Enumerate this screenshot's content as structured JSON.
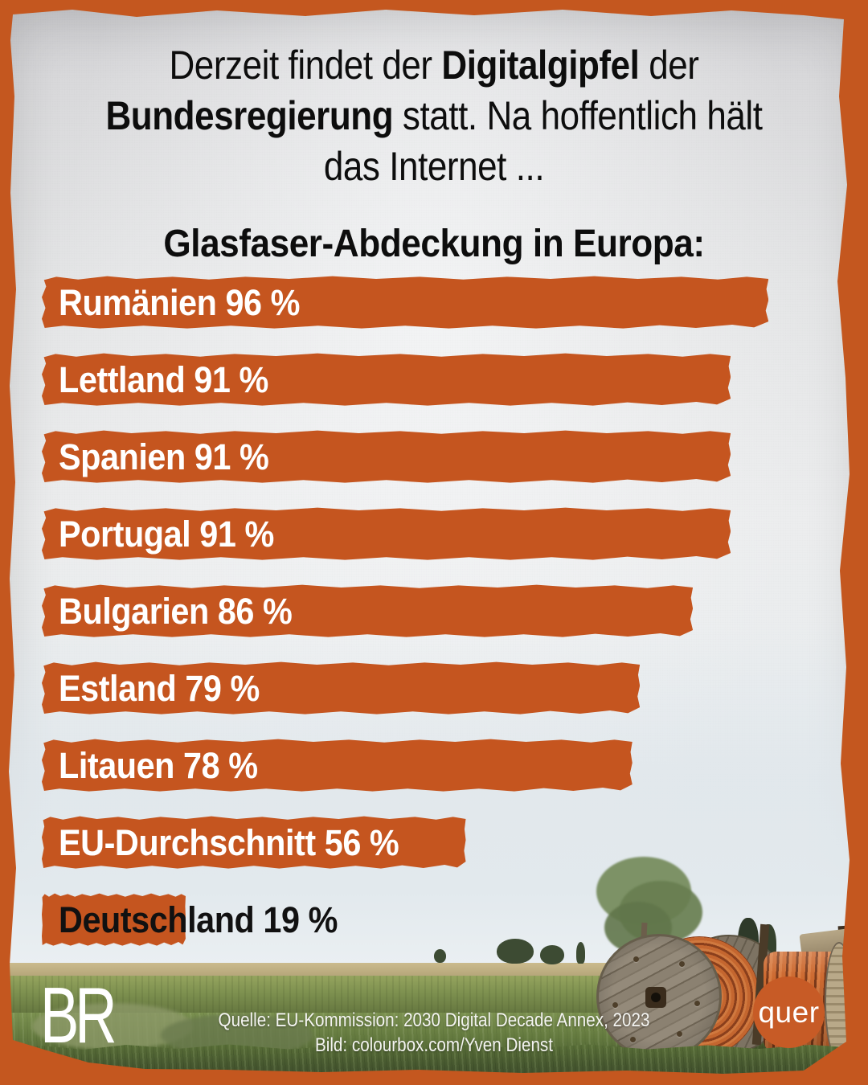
{
  "header": {
    "line1_normal1": "Derzeit findet der ",
    "line1_bold": "Digitalgipfel",
    "line1_normal2": " der",
    "line2_bold": "Bundesregierung",
    "line2_normal": " statt. Na hoffentlich hält",
    "line3": "das Internet ..."
  },
  "chart_data": {
    "type": "bar",
    "orientation": "horizontal",
    "title": "Glasfaser-Abdeckung in Europa:",
    "categories": [
      "Rumänien",
      "Lettland",
      "Spanien",
      "Portugal",
      "Bulgarien",
      "Estland",
      "Litauen",
      "EU-Durchschnitt",
      "Deutschland"
    ],
    "values": [
      96,
      91,
      91,
      91,
      86,
      79,
      78,
      56,
      19
    ],
    "unit": "%",
    "xlim": [
      0,
      100
    ],
    "grid": false,
    "legend": false,
    "bar_color": "#c5551f",
    "label_template": "{category} {value} %",
    "label_color": "#ffffff",
    "highlight_category": "Deutschland",
    "highlight_label_color": "#111111"
  },
  "footer": {
    "source_line1": "Quelle: EU-Kommission: 2030 Digital Decade Annex, 2023",
    "source_line2": "Bild: colourbox.com/Yven Dienst",
    "br_logo_text": "BR",
    "quer_logo_text": "quer"
  },
  "colors": {
    "frame_orange": "#c4571f",
    "bar_orange": "#c5551f",
    "badge_orange": "#c75b26",
    "headline_black": "#0d0d0d",
    "caption_white": "#f4f4f1"
  }
}
